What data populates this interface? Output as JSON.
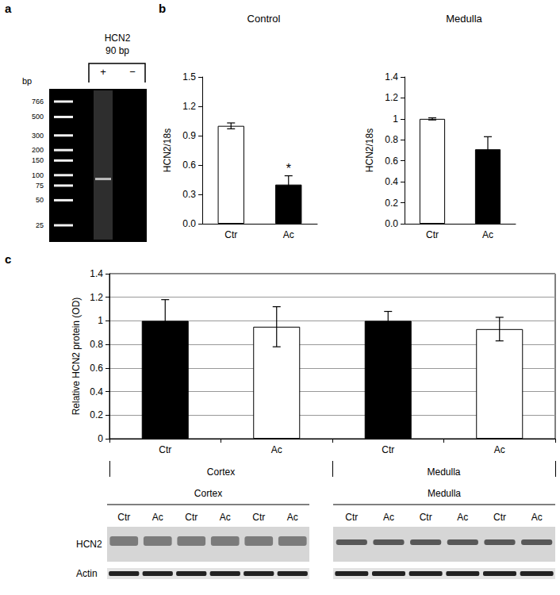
{
  "panel_labels": [
    "a",
    "b",
    "c"
  ],
  "gel": {
    "title": "HCN2",
    "subtitle": "90 bp",
    "unit": "bp",
    "ladder": [
      766,
      500,
      300,
      200,
      150,
      100,
      75,
      50,
      25
    ],
    "lanes": [
      "+",
      "−"
    ],
    "band": {
      "lane": "+",
      "size": 90
    }
  },
  "chart_data": [
    {
      "type": "bar",
      "title": "Control",
      "y_label": "HCN2/18s",
      "categories": [
        "Ctr",
        "Ac"
      ],
      "values": [
        1.0,
        0.4
      ],
      "error": [
        0.03,
        0.09
      ],
      "colors": [
        "#ffffff",
        "#000000"
      ],
      "ylim": [
        0,
        1.5
      ],
      "yticks": [
        {
          "value": 0,
          "label": "0.0"
        },
        0.3,
        0.6,
        0.9,
        1.2,
        1.5
      ],
      "grid": false,
      "annotations": [
        {
          "x": "Ac",
          "text": "*"
        }
      ]
    },
    {
      "type": "bar",
      "title": "Medulla",
      "y_label": "HCN2/18s",
      "categories": [
        "Ctr",
        "Ac"
      ],
      "values": [
        1.0,
        0.71
      ],
      "error": [
        0.01,
        0.12
      ],
      "colors": [
        "#ffffff",
        "#000000"
      ],
      "ylim": [
        0,
        1.4
      ],
      "yticks": [
        {
          "value": 0,
          "label": "0.0"
        },
        0.2,
        0.4,
        0.6,
        0.8,
        1.0,
        1.2,
        1.4
      ],
      "grid": false
    },
    {
      "type": "bar",
      "y_label": "Relative HCN2 protein (OD)",
      "categories": [
        "Ctr",
        "Ac",
        "Ctr",
        "Ac"
      ],
      "groups": [
        "Cortex",
        "Cortex",
        "Medulla",
        "Medulla"
      ],
      "values": [
        1.0,
        0.95,
        1.0,
        0.93
      ],
      "error": [
        0.18,
        0.17,
        0.08,
        0.1
      ],
      "colors": [
        "#000000",
        "#ffffff",
        "#000000",
        "#ffffff"
      ],
      "ylim": [
        0,
        1.4
      ],
      "yticks": [
        0,
        0.2,
        0.4,
        0.6,
        0.8,
        1,
        1.2,
        1.4
      ],
      "grid": true
    }
  ],
  "blot": {
    "groups": [
      {
        "name": "Cortex",
        "lanes": [
          "Ctr",
          "Ac",
          "Ctr",
          "Ac",
          "Ctr",
          "Ac"
        ]
      },
      {
        "name": "Medulla",
        "lanes": [
          "Ctr",
          "Ac",
          "Ctr",
          "Ac",
          "Ctr",
          "Ac"
        ]
      }
    ],
    "rows": [
      "HCN2",
      "Actin"
    ]
  }
}
